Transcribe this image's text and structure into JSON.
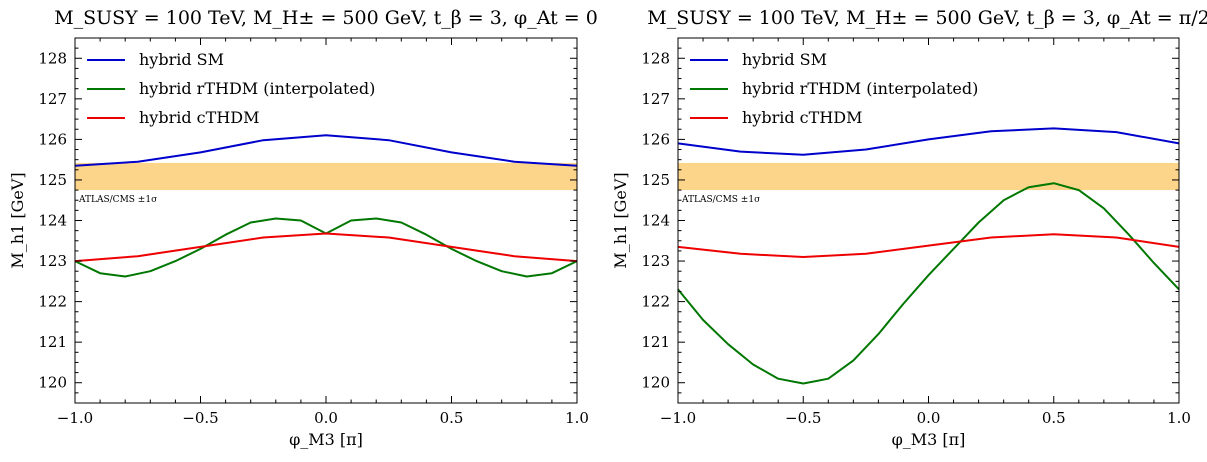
{
  "chart_data": [
    {
      "type": "line",
      "title": "M_SUSY = 100 TeV, M_H± = 500 GeV, t_β = 3, φ_At = 0",
      "xlabel": "φ_M3 [π]",
      "ylabel": "M_h1 [GeV]",
      "xlim": [
        -1.0,
        1.0
      ],
      "ylim": [
        119.5,
        128.5
      ],
      "xticks": [
        -1.0,
        -0.5,
        0.0,
        0.5,
        1.0
      ],
      "xtick_labels": [
        "−1.0",
        "−0.5",
        "0.0",
        "0.5",
        "1.0"
      ],
      "yticks": [
        120,
        121,
        122,
        123,
        124,
        125,
        126,
        127,
        128
      ],
      "ytick_labels": [
        "120",
        "121",
        "122",
        "123",
        "124",
        "125",
        "126",
        "127",
        "128"
      ],
      "grid": false,
      "legend_position": "top-left",
      "band": {
        "label": "ATLAS/CMS ±1σ",
        "y0": 124.75,
        "y1": 125.42,
        "color": "#fdd58a"
      },
      "series": [
        {
          "name": "hybrid SM",
          "color": "#0000cc",
          "x": [
            -1.0,
            -0.75,
            -0.5,
            -0.25,
            0.0,
            0.25,
            0.5,
            0.75,
            1.0
          ],
          "y": [
            125.35,
            125.45,
            125.68,
            125.98,
            126.1,
            125.98,
            125.68,
            125.45,
            125.35
          ]
        },
        {
          "name": "hybrid rTHDM (interpolated)",
          "color": "#007700",
          "x": [
            -1.0,
            -0.9,
            -0.8,
            -0.7,
            -0.6,
            -0.5,
            -0.4,
            -0.3,
            -0.2,
            -0.1,
            0.0,
            0.1,
            0.2,
            0.3,
            0.4,
            0.5,
            0.6,
            0.7,
            0.8,
            0.9,
            1.0
          ],
          "y": [
            123.0,
            122.7,
            122.62,
            122.75,
            123.0,
            123.3,
            123.65,
            123.95,
            124.05,
            124.0,
            123.68,
            124.0,
            124.05,
            123.95,
            123.65,
            123.3,
            123.0,
            122.75,
            122.62,
            122.7,
            123.0
          ]
        },
        {
          "name": "hybrid cTHDM",
          "color": "#ee0000",
          "x": [
            -1.0,
            -0.75,
            -0.5,
            -0.25,
            0.0,
            0.25,
            0.5,
            0.75,
            1.0
          ],
          "y": [
            123.0,
            123.12,
            123.35,
            123.58,
            123.68,
            123.58,
            123.35,
            123.12,
            123.0
          ]
        }
      ]
    },
    {
      "type": "line",
      "title": "M_SUSY = 100 TeV, M_H± = 500 GeV, t_β = 3, φ_At = π/2",
      "xlabel": "φ_M3 [π]",
      "ylabel": "M_h1 [GeV]",
      "xlim": [
        -1.0,
        1.0
      ],
      "ylim": [
        119.5,
        128.5
      ],
      "xticks": [
        -1.0,
        -0.5,
        0.0,
        0.5,
        1.0
      ],
      "xtick_labels": [
        "−1.0",
        "−0.5",
        "0.0",
        "0.5",
        "1.0"
      ],
      "yticks": [
        120,
        121,
        122,
        123,
        124,
        125,
        126,
        127,
        128
      ],
      "ytick_labels": [
        "120",
        "121",
        "122",
        "123",
        "124",
        "125",
        "126",
        "127",
        "128"
      ],
      "grid": false,
      "legend_position": "top-left",
      "band": {
        "label": "ATLAS/CMS ±1σ",
        "y0": 124.75,
        "y1": 125.42,
        "color": "#fdd58a"
      },
      "series": [
        {
          "name": "hybrid SM",
          "color": "#0000cc",
          "x": [
            -1.0,
            -0.75,
            -0.5,
            -0.25,
            0.0,
            0.25,
            0.5,
            0.75,
            1.0
          ],
          "y": [
            125.9,
            125.7,
            125.62,
            125.75,
            126.0,
            126.2,
            126.27,
            126.18,
            125.9
          ]
        },
        {
          "name": "hybrid rTHDM (interpolated)",
          "color": "#007700",
          "x": [
            -1.0,
            -0.9,
            -0.8,
            -0.7,
            -0.6,
            -0.5,
            -0.4,
            -0.3,
            -0.2,
            -0.1,
            0.0,
            0.1,
            0.2,
            0.3,
            0.4,
            0.5,
            0.6,
            0.7,
            0.8,
            0.9,
            1.0
          ],
          "y": [
            122.3,
            121.55,
            120.95,
            120.45,
            120.1,
            119.98,
            120.1,
            120.55,
            121.2,
            121.95,
            122.65,
            123.3,
            123.95,
            124.5,
            124.82,
            124.92,
            124.75,
            124.3,
            123.65,
            122.95,
            122.3
          ]
        },
        {
          "name": "hybrid cTHDM",
          "color": "#ee0000",
          "x": [
            -1.0,
            -0.75,
            -0.5,
            -0.25,
            0.0,
            0.25,
            0.5,
            0.75,
            1.0
          ],
          "y": [
            123.35,
            123.18,
            123.1,
            123.18,
            123.38,
            123.58,
            123.66,
            123.58,
            123.35
          ]
        }
      ]
    }
  ]
}
